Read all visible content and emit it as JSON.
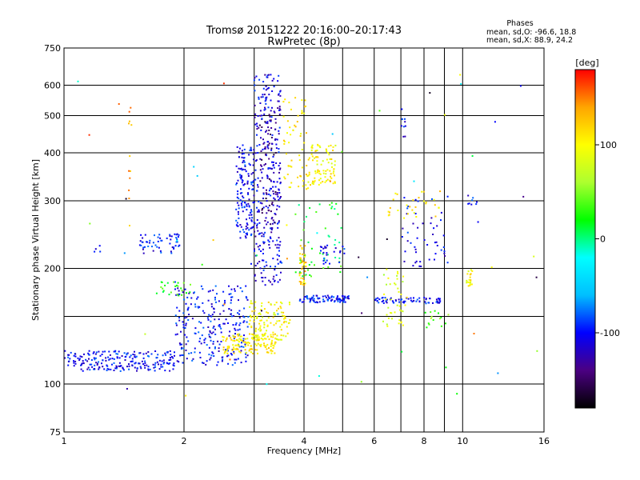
{
  "chart_data": {
    "type": "scatter",
    "title": "Tromsø 20151222 20:16:00–20:17:43",
    "subtitle": "RwPretec (8p)",
    "xlabel": "Frequency [MHz]",
    "ylabel": "Stationary phase Virtual Height [km]",
    "x_scale": "log",
    "y_scale": "log",
    "xlim": [
      1,
      16
    ],
    "ylim": [
      75,
      750
    ],
    "x_ticks": [
      1,
      2,
      4,
      6,
      8,
      10,
      16
    ],
    "x_minor_ticks": [
      3,
      5,
      7,
      9
    ],
    "y_ticks": [
      75,
      100,
      200,
      300,
      400,
      500,
      600,
      750
    ],
    "y_minor_ticks": [
      150
    ],
    "grid": true,
    "phases_panel": {
      "title": "Phases",
      "line_o": "mean, sd,O: -96.6, 18.8",
      "line_x": "mean, sd,X:  88.9, 24.2"
    },
    "colorbar": {
      "label": "[deg]",
      "range": [
        -180,
        180
      ],
      "ticks": [
        100,
        0,
        -100
      ]
    },
    "colorscale_stops": [
      "#000000",
      "#4b0082",
      "#0000ff",
      "#00bfff",
      "#00ffff",
      "#00ff00",
      "#adff2f",
      "#ffff00",
      "#ffa500",
      "#ff0000"
    ],
    "point_groups": [
      {
        "f": [
          1.0,
          1.9
        ],
        "h": [
          108,
          122
        ],
        "phase": -100,
        "n": 220
      },
      {
        "f": [
          1.9,
          2.9
        ],
        "h": [
          112,
          180
        ],
        "phase": -100,
        "n": 260
      },
      {
        "f": [
          1.55,
          1.95
        ],
        "h": [
          218,
          246
        ],
        "phase": -100,
        "n": 55
      },
      {
        "f": [
          1.15,
          1.25
        ],
        "h": [
          220,
          232
        ],
        "phase": -100,
        "n": 4
      },
      {
        "f": [
          2.5,
          3.4
        ],
        "h": [
          120,
          135
        ],
        "phase": 110,
        "n": 140
      },
      {
        "f": [
          2.9,
          3.7
        ],
        "h": [
          130,
          165
        ],
        "phase": 100,
        "n": 120
      },
      {
        "f": [
          1.7,
          2.1
        ],
        "h": [
          170,
          185
        ],
        "phase": 30,
        "n": 25
      },
      {
        "f": [
          2.7,
          3.0
        ],
        "h": [
          240,
          420
        ],
        "phase": -100,
        "n": 150
      },
      {
        "f": [
          3.0,
          3.5
        ],
        "h": [
          180,
          640
        ],
        "phase": -110,
        "n": 300
      },
      {
        "f": [
          3.1,
          3.4
        ],
        "h": [
          260,
          520
        ],
        "phase": -140,
        "n": 60
      },
      {
        "f": [
          3.55,
          4.1
        ],
        "h": [
          320,
          560
        ],
        "phase": 110,
        "n": 60
      },
      {
        "f": [
          4.1,
          4.8
        ],
        "h": [
          330,
          420
        ],
        "phase": 100,
        "n": 90
      },
      {
        "f": [
          3.9,
          4.05
        ],
        "h": [
          180,
          230
        ],
        "phase": 120,
        "n": 40
      },
      {
        "f": [
          3.9,
          5.2
        ],
        "h": [
          163,
          170
        ],
        "phase": -100,
        "n": 90
      },
      {
        "f": [
          3.8,
          5.0
        ],
        "h": [
          190,
          300
        ],
        "phase": 20,
        "n": 50
      },
      {
        "f": [
          4.4,
          5.1
        ],
        "h": [
          200,
          230
        ],
        "phase": -100,
        "n": 25
      },
      {
        "f": [
          6.0,
          8.8
        ],
        "h": [
          162,
          168
        ],
        "phase": -100,
        "n": 70
      },
      {
        "f": [
          6.3,
          7.2
        ],
        "h": [
          140,
          200
        ],
        "phase": 80,
        "n": 40
      },
      {
        "f": [
          7.0,
          9.2
        ],
        "h": [
          200,
          310
        ],
        "phase": -100,
        "n": 50
      },
      {
        "f": [
          6.5,
          9.0
        ],
        "h": [
          270,
          320
        ],
        "phase": 110,
        "n": 30
      },
      {
        "f": [
          10.1,
          10.6
        ],
        "h": [
          180,
          200
        ],
        "phase": 100,
        "n": 20
      },
      {
        "f": [
          10.3,
          10.9
        ],
        "h": [
          290,
          310
        ],
        "phase": -100,
        "n": 8
      },
      {
        "f": [
          8.0,
          9.5
        ],
        "h": [
          140,
          160
        ],
        "phase": 40,
        "n": 15
      },
      {
        "f": [
          7.0,
          7.2
        ],
        "h": [
          440,
          520
        ],
        "phase": -100,
        "n": 10
      },
      {
        "f": [
          1.45,
          1.48
        ],
        "h": [
          250,
          640
        ],
        "phase": 140,
        "n": 12
      },
      {
        "f": [
          1.0,
          16.0
        ],
        "h": [
          90,
          650
        ],
        "phase": 0,
        "n": 60
      }
    ]
  }
}
